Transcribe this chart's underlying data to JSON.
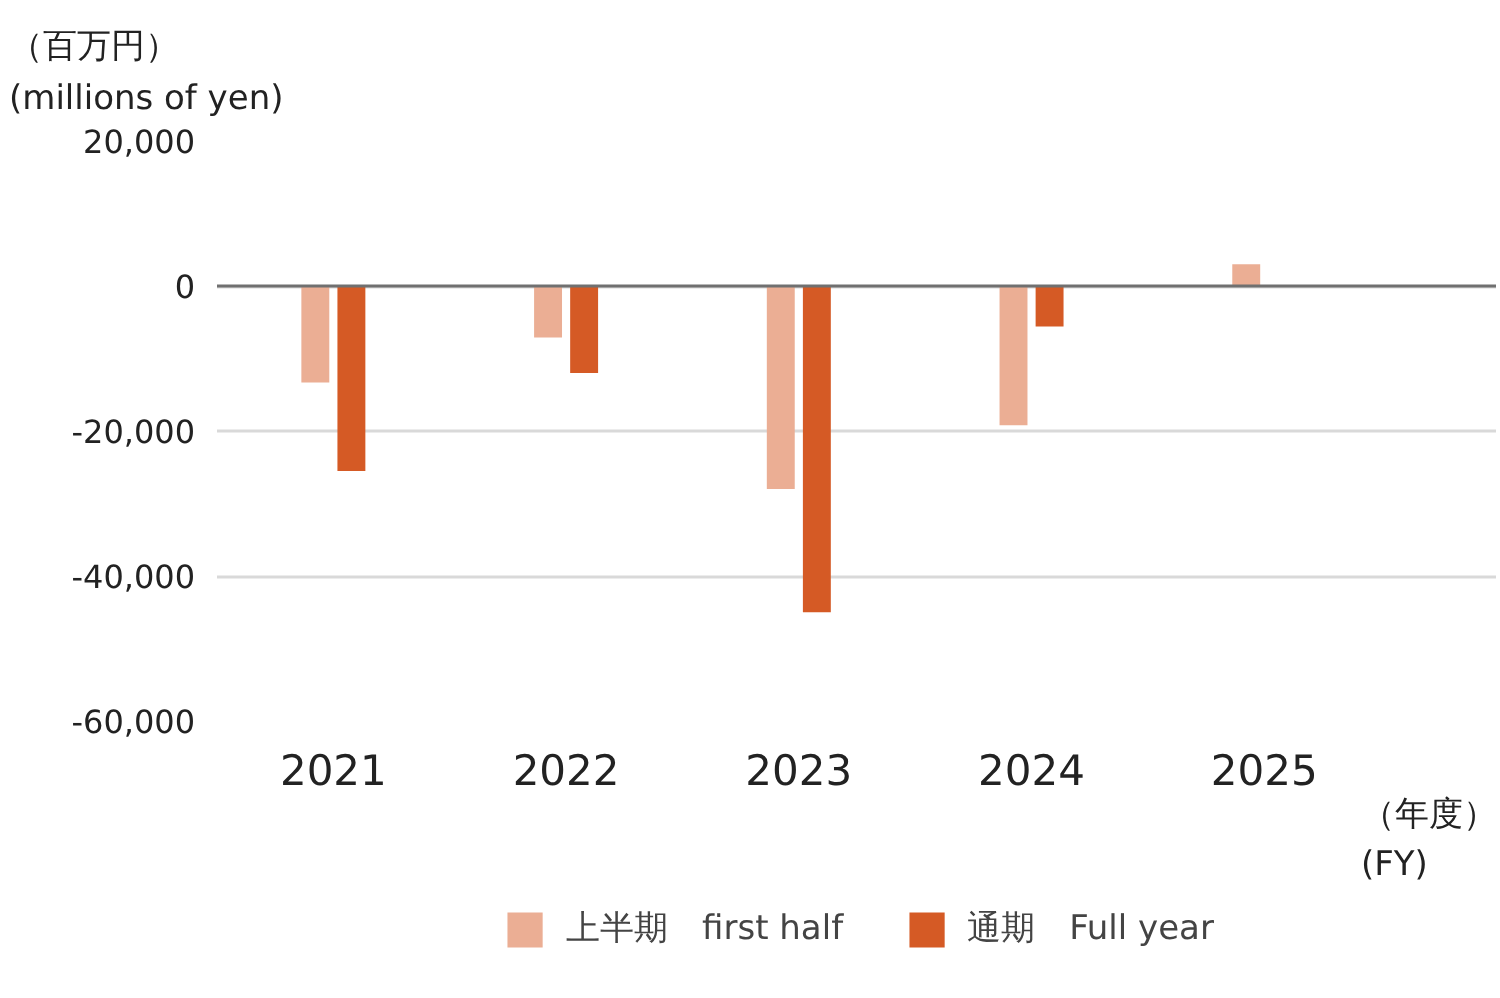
{
  "chart_data": {
    "type": "bar",
    "ylabel": "（百万円）\n(millions of yen)",
    "xlabel": "（年度）\n(FY)",
    "categories": [
      "2021",
      "2022",
      "2023",
      "2024",
      "2025"
    ],
    "series": [
      {
        "name": "上半期　first half",
        "color": "#ebae94",
        "values": [
          -13300,
          -7100,
          -28000,
          -19200,
          3000
        ]
      },
      {
        "name": "通期　Full year",
        "color": "#d55a25",
        "values": [
          -25500,
          -12000,
          -45000,
          -5600,
          null
        ]
      }
    ],
    "ylim": [
      -60000,
      20000
    ],
    "yticks": [
      {
        "value": -60000,
        "label": "-60,000"
      },
      {
        "value": -40000,
        "label": "-40,000"
      },
      {
        "value": -20000,
        "label": "-20,000"
      },
      {
        "value": 0,
        "label": "0"
      },
      {
        "value": 20000,
        "label": "20,000"
      }
    ],
    "grid": "y",
    "legend": "bottom"
  }
}
